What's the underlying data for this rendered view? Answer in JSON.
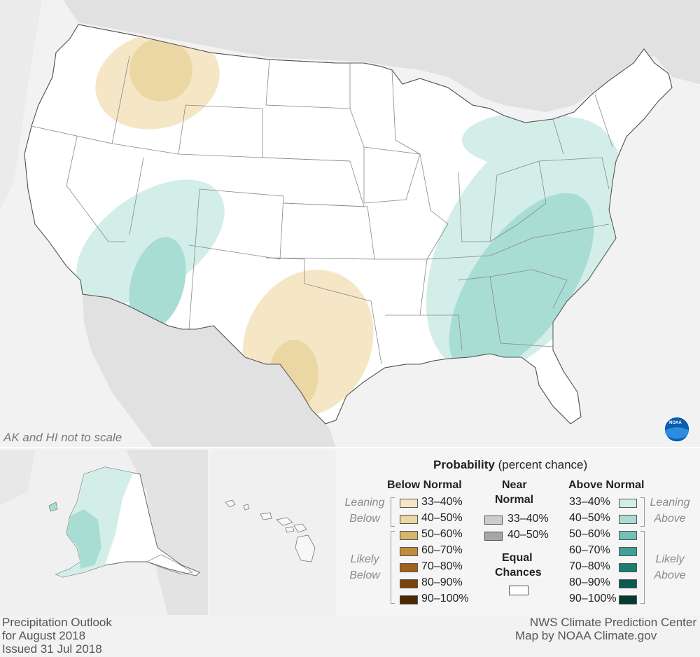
{
  "map": {
    "note": "AK and HI not to scale",
    "logo_text": "NOAA"
  },
  "legend": {
    "title_bold": "Probability",
    "title_rest": "(percent chance)",
    "below_header": "Below Normal",
    "near_header_1": "Near",
    "near_header_2": "Normal",
    "above_header": "Above Normal",
    "leaning_below_1": "Leaning",
    "leaning_below_2": "Below",
    "likely_below_1": "Likely",
    "likely_below_2": "Below",
    "leaning_above_1": "Leaning",
    "leaning_above_2": "Above",
    "likely_above_1": "Likely",
    "likely_above_2": "Above",
    "equal_1": "Equal",
    "equal_2": "Chances",
    "below": [
      {
        "label": "33–40%",
        "color": "#f5e7c6"
      },
      {
        "label": "40–50%",
        "color": "#ebd7a4"
      },
      {
        "label": "50–60%",
        "color": "#d8b56b"
      },
      {
        "label": "60–70%",
        "color": "#c48c3a"
      },
      {
        "label": "70–80%",
        "color": "#a0611b"
      },
      {
        "label": "80–90%",
        "color": "#7a430b"
      },
      {
        "label": "90–100%",
        "color": "#4d2804"
      }
    ],
    "near": [
      {
        "label": "33–40%",
        "color": "#cccccc"
      },
      {
        "label": "40–50%",
        "color": "#a6a6a6"
      }
    ],
    "above": [
      {
        "label": "33–40%",
        "color": "#d3eee9"
      },
      {
        "label": "40–50%",
        "color": "#a8ddd4"
      },
      {
        "label": "50–60%",
        "color": "#71c2b6"
      },
      {
        "label": "60–70%",
        "color": "#3fa095"
      },
      {
        "label": "70–80%",
        "color": "#1d7c70"
      },
      {
        "label": "80–90%",
        "color": "#0c5a4f"
      },
      {
        "label": "90–100%",
        "color": "#043a31"
      }
    ]
  },
  "footer": {
    "left_1": "Precipitation Outlook",
    "left_2": "for August 2018",
    "left_3": "Issued 31 Jul 2018",
    "right_1": "NWS Climate Prediction Center",
    "right_2": "Map by NOAA Climate.gov"
  }
}
